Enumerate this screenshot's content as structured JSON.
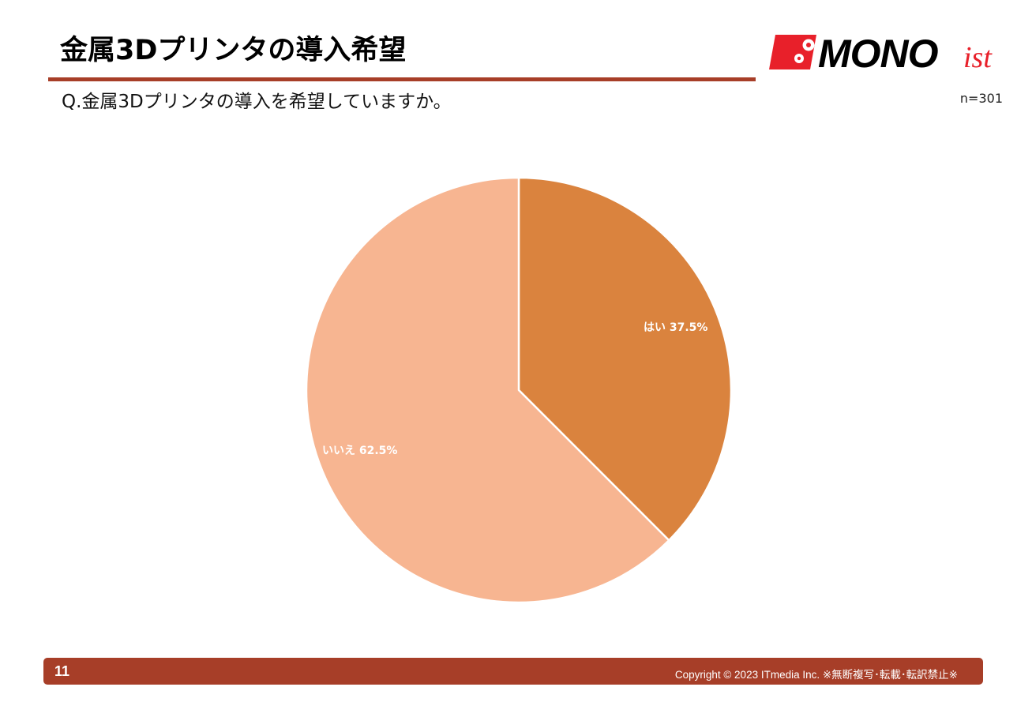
{
  "header": {
    "title": "金属3Dプリンタの導入希望",
    "question": "Q.金属3Dプリンタの導入を希望していますか。",
    "sample_size": "n=301",
    "rule_color": "#a73e28"
  },
  "logo": {
    "text_main": "MONO",
    "text_suffix": "ist",
    "icon": "gear-icon",
    "brand_red": "#e8202a"
  },
  "chart_data": {
    "type": "pie",
    "title": "金属3Dプリンタの導入希望",
    "subtitle": "Q.金属3Dプリンタの導入を希望していますか。",
    "n": 301,
    "categories": [
      "はい",
      "いいえ"
    ],
    "values": [
      37.5,
      62.5
    ],
    "unit": "%",
    "colors": [
      "#da833e",
      "#f7b591"
    ],
    "labels": [
      "はい 37.5%",
      "いいえ 62.5%"
    ],
    "start_angle": "12 o'clock, clockwise",
    "legend": "none (labels inside slices)"
  },
  "footer": {
    "page_number": "11",
    "copyright": "Copyright © 2023 ITmedia Inc.  ※無断複写･転載･転訳禁止※",
    "bar_color": "#a73e28"
  }
}
